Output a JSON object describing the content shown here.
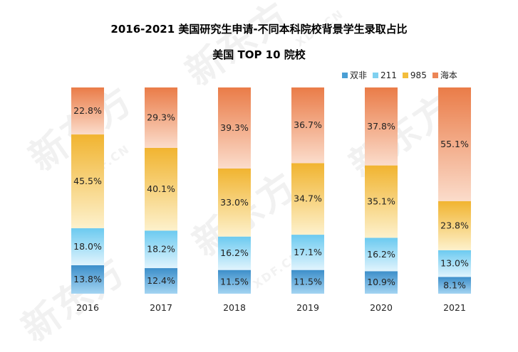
{
  "chart_data": {
    "type": "bar",
    "stacked": true,
    "title": "2016-2021 美国研究生申请-不同本科院校背景学生录取占比",
    "subtitle": "美国 TOP 10 院校",
    "categories": [
      "2016",
      "2017",
      "2018",
      "2019",
      "2020",
      "2021"
    ],
    "series": [
      {
        "name": "双非",
        "color": "#4a9fd5",
        "values": [
          13.8,
          12.4,
          11.5,
          11.5,
          10.9,
          8.1
        ]
      },
      {
        "name": "211",
        "color": "#7fd0f0",
        "values": [
          18.0,
          18.2,
          16.2,
          17.1,
          16.2,
          13.0
        ]
      },
      {
        "name": "985",
        "color": "#f3bd3c",
        "values": [
          45.5,
          40.1,
          33.0,
          34.7,
          35.1,
          23.8
        ]
      },
      {
        "name": "海本",
        "color": "#ec8556",
        "values": [
          22.8,
          29.3,
          39.3,
          36.7,
          37.8,
          55.1
        ]
      }
    ],
    "value_suffix": "%",
    "ylim": [
      0,
      100
    ],
    "grid": false,
    "legend_position": "top-right"
  },
  "watermark": {
    "text": "新东方",
    "sub": "XDF.CN"
  }
}
